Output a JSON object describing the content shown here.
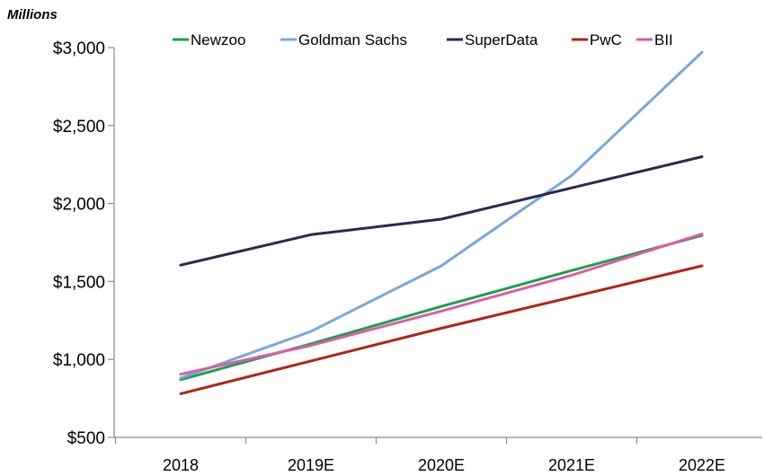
{
  "chart_data": {
    "type": "line",
    "unit_label": "Millions",
    "categories": [
      "2018",
      "2019E",
      "2020E",
      "2021E",
      "2022E"
    ],
    "y_ticks": [
      "$500",
      "$1,000",
      "$1,500",
      "$2,000",
      "$2,500",
      "$3,000"
    ],
    "ylim": [
      500,
      3000
    ],
    "grid": false,
    "legend_position": "top",
    "series": [
      {
        "name": "Newzoo",
        "color": "#16a34a",
        "values": [
          870,
          1100,
          1340,
          1570,
          1795
        ]
      },
      {
        "name": "Goldman Sachs",
        "color": "#7aa7d9",
        "values": [
          880,
          1180,
          1600,
          2180,
          2970
        ]
      },
      {
        "name": "SuperData",
        "color": "#2b2a4c",
        "values": [
          1605,
          1800,
          1900,
          2100,
          2300
        ]
      },
      {
        "name": "PwC",
        "color": "#b22314",
        "values": [
          780,
          990,
          1200,
          1400,
          1600
        ]
      },
      {
        "name": "BII",
        "color": "#e05aa8",
        "values": [
          905,
          1090,
          1310,
          1540,
          1805
        ]
      }
    ]
  }
}
